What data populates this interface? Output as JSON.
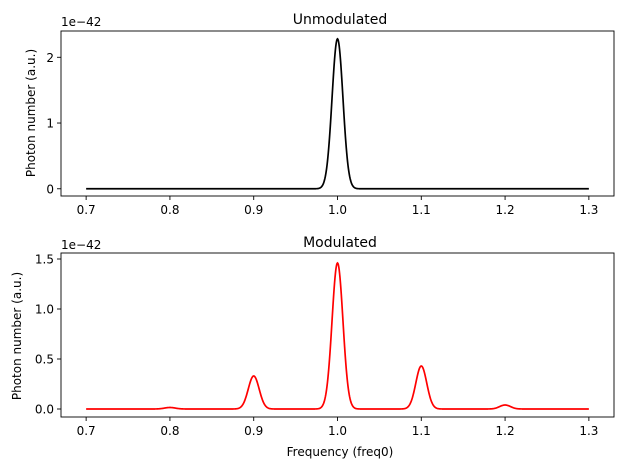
{
  "chart_data": [
    {
      "type": "line",
      "title": "Unmodulated",
      "xlabel": "",
      "ylabel": "Photon number (a.u.)",
      "y_offset_label": "1e−42",
      "xlim": [
        0.67,
        1.33
      ],
      "ylim": [
        -0.11,
        2.4
      ],
      "xticks": [
        0.7,
        0.8,
        0.9,
        1.0,
        1.1,
        1.2,
        1.3
      ],
      "xtick_labels": [
        "0.7",
        "0.8",
        "0.9",
        "1.0",
        "1.1",
        "1.2",
        "1.3"
      ],
      "yticks": [
        0,
        1,
        2
      ],
      "ytick_labels": [
        "0",
        "1",
        "2"
      ],
      "grid": false,
      "x_range": [
        0.7,
        1.3
      ],
      "series": [
        {
          "color": "#000000",
          "peaks": [
            {
              "x": 1.0,
              "y": 2.28
            }
          ],
          "peak_sigma": 0.0065
        }
      ]
    },
    {
      "type": "line",
      "title": "Modulated",
      "xlabel": "Frequency (freq0)",
      "ylabel": "Photon number (a.u.)",
      "y_offset_label": "1e−42",
      "xlim": [
        0.67,
        1.33
      ],
      "ylim": [
        -0.08,
        1.56
      ],
      "xticks": [
        0.7,
        0.8,
        0.9,
        1.0,
        1.1,
        1.2,
        1.3
      ],
      "xtick_labels": [
        "0.7",
        "0.8",
        "0.9",
        "1.0",
        "1.1",
        "1.2",
        "1.3"
      ],
      "yticks": [
        0,
        0.5,
        1.0,
        1.5
      ],
      "ytick_labels": [
        "0.0",
        "0.5",
        "1.0",
        "1.5"
      ],
      "grid": false,
      "x_range": [
        0.7,
        1.3
      ],
      "series": [
        {
          "color": "#ff0000",
          "peaks": [
            {
              "x": 0.8,
              "y": 0.015
            },
            {
              "x": 0.9,
              "y": 0.33
            },
            {
              "x": 1.0,
              "y": 1.46
            },
            {
              "x": 1.1,
              "y": 0.43
            },
            {
              "x": 1.2,
              "y": 0.04
            }
          ],
          "peak_sigma": 0.0065
        }
      ]
    }
  ]
}
